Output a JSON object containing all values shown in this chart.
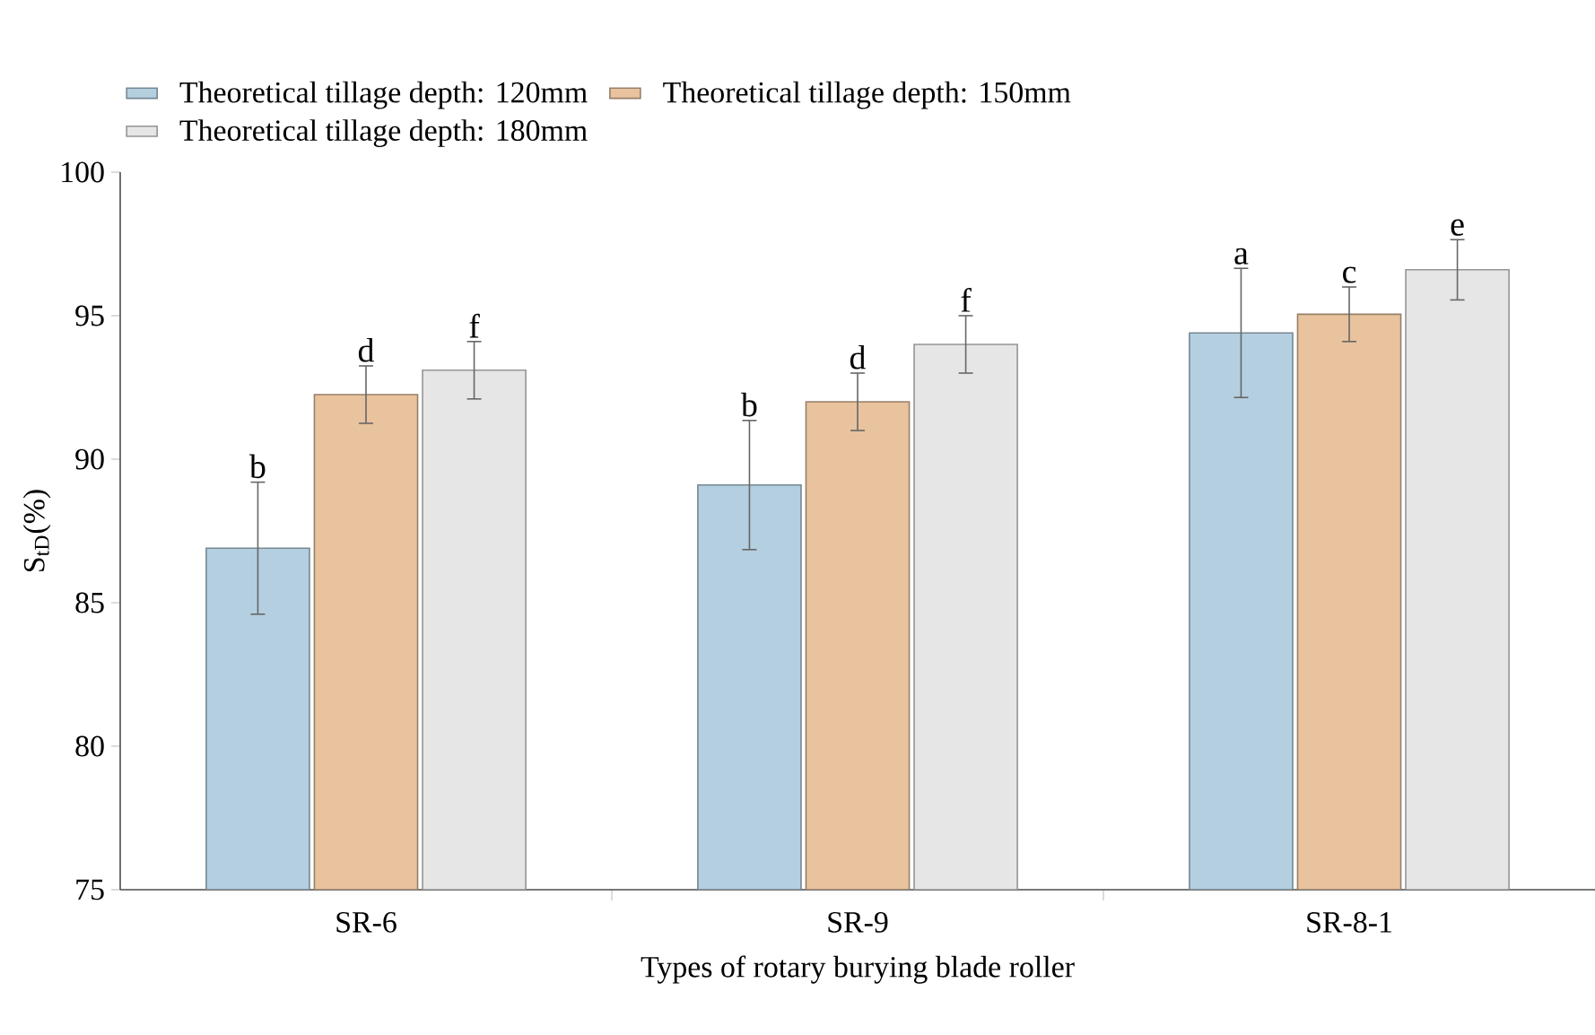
{
  "chart_data": {
    "type": "bar",
    "xlabel": "Types of rotary burying blade roller",
    "ylabel": "S$_{tD}$(%)",
    "categories": [
      "SR-6",
      "SR-9",
      "SR-8-1"
    ],
    "series": [
      {
        "name": "Theoretical tillage depth: 120mm",
        "color": "#b4cfe0",
        "values": [
          86.9,
          89.1,
          94.4
        ],
        "errors": [
          2.3,
          2.25,
          2.25
        ],
        "value_labels": [
          "b",
          "b",
          "a"
        ]
      },
      {
        "name": "Theoretical tillage depth: 150mm",
        "color": "#e8c39e",
        "values": [
          92.25,
          92.0,
          95.05
        ],
        "errors": [
          1.0,
          1.0,
          0.95
        ],
        "value_labels": [
          "d",
          "d",
          "c"
        ]
      },
      {
        "name": "Theoretical tillage depth: 180mm",
        "color": "#e6e6e6",
        "values": [
          93.1,
          94.0,
          96.6
        ],
        "errors": [
          1.0,
          1.0,
          1.05
        ],
        "value_labels": [
          "f",
          "f",
          "e"
        ]
      }
    ],
    "ylim": [
      75,
      100
    ],
    "yticks": [
      75,
      80,
      85,
      90,
      95,
      100
    ],
    "grid": false,
    "legend": "top"
  }
}
